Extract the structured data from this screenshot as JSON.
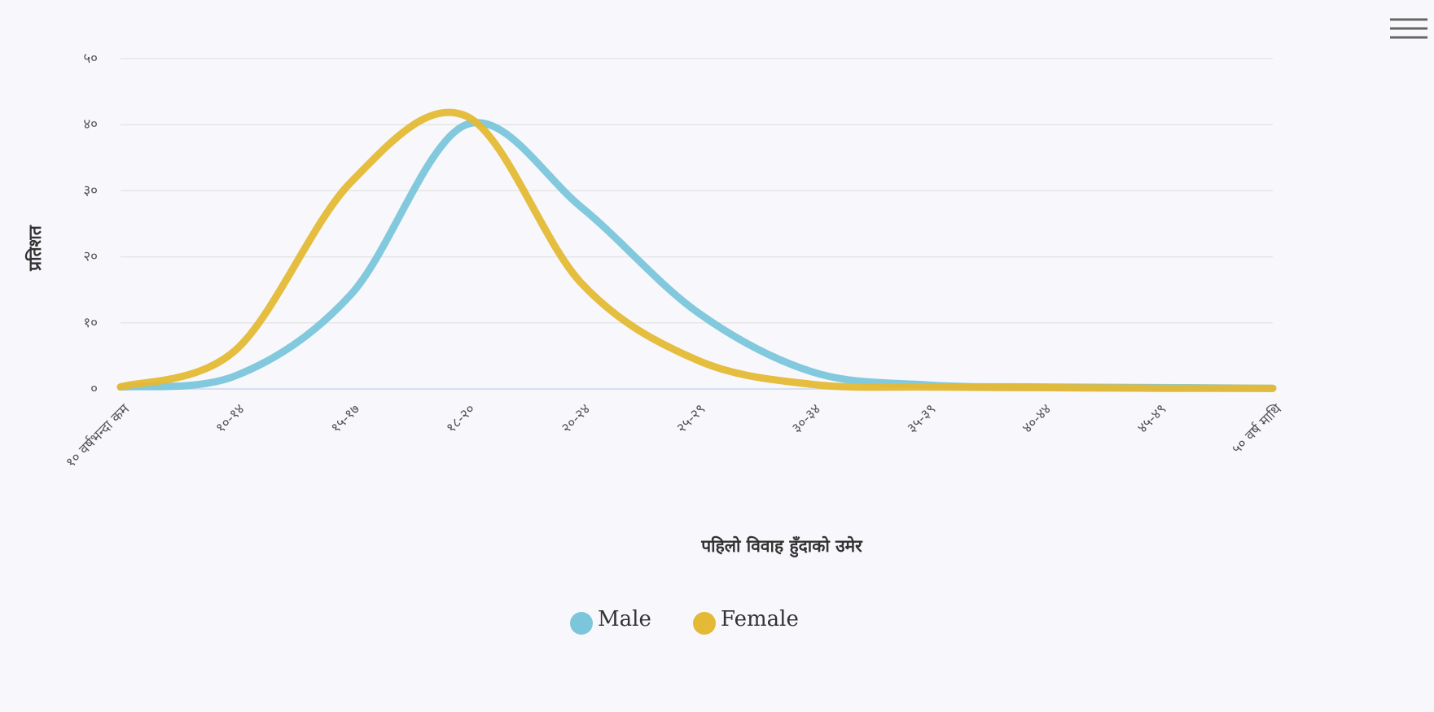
{
  "chart_data": {
    "type": "spline",
    "y_axis_label": "प्रतिशत",
    "x_axis_label": "पहिलो विवाह हुँदाको उमेर",
    "categories": [
      "१० वर्षभन्दा कम",
      "१०-१४",
      "१५-१७",
      "१८-२०",
      "२०-२४",
      "२५-२९",
      "३०-३४",
      "३५-३९",
      "४०-४४",
      "४५-४९",
      "५० वर्ष माथि"
    ],
    "series": [
      {
        "name": "Male",
        "color": "#7cc6db",
        "values": [
          0.3,
          2,
          14.3,
          40,
          27.5,
          11.7,
          2.6,
          0.6,
          0.3,
          0.2,
          0.1
        ]
      },
      {
        "name": "Female",
        "color": "#e4b935",
        "values": [
          0.3,
          5.9,
          31.3,
          41.3,
          16,
          4.4,
          0.7,
          0.3,
          0.2,
          0.1,
          0.1
        ]
      }
    ],
    "ylim": [
      0,
      50
    ],
    "yticks": [
      {
        "value": 0,
        "label": "०"
      },
      {
        "value": 10,
        "label": "१०"
      },
      {
        "value": 20,
        "label": "२०"
      },
      {
        "value": 30,
        "label": "३०"
      },
      {
        "value": 40,
        "label": "४०"
      },
      {
        "value": 50,
        "label": "५०"
      }
    ],
    "grid": true,
    "legend": "bottom"
  }
}
